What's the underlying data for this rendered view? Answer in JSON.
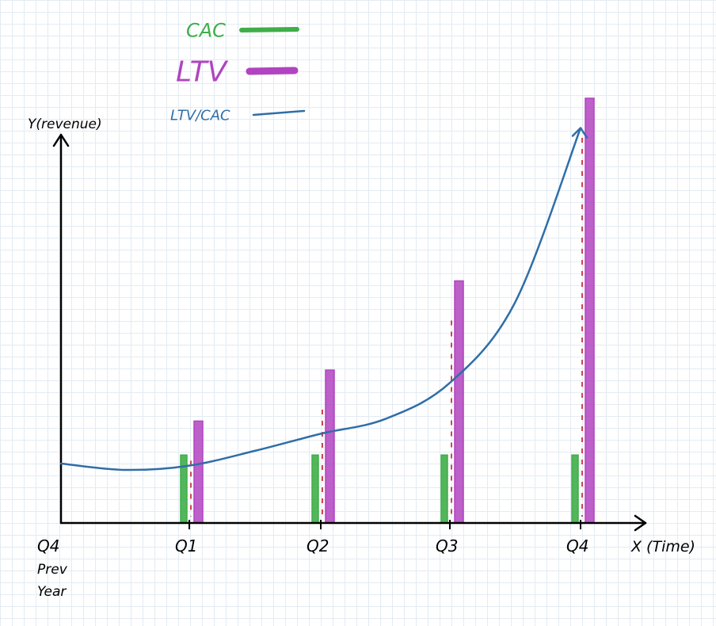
{
  "chart_data": {
    "type": "bar",
    "categories": [
      "Q4 Prev Year",
      "Q1",
      "Q2",
      "Q3",
      "Q4"
    ],
    "x_tick_labels": [
      {
        "lines": [
          "Q4",
          "Prev",
          "Year"
        ]
      },
      {
        "lines": [
          "Q1"
        ]
      },
      {
        "lines": [
          "Q2"
        ]
      },
      {
        "lines": [
          "Q3"
        ]
      },
      {
        "lines": [
          "Q4"
        ]
      }
    ],
    "xlabel": "X (Time)",
    "ylabel": "Y(revenue)",
    "ylim": [
      0,
      100
    ],
    "grid": true,
    "legend_position": "top-center",
    "series": [
      {
        "name": "CAC",
        "kind": "bar",
        "color": "#3fae49",
        "values": [
          null,
          16,
          16,
          16,
          16
        ]
      },
      {
        "name": "LTV",
        "kind": "bar",
        "color": "#b144c0",
        "values": [
          null,
          24,
          36,
          57,
          100
        ]
      },
      {
        "name": "LTV/CAC",
        "kind": "line",
        "color": "#2f6ea8",
        "points": [
          [
            0,
            14
          ],
          [
            0.5,
            12.5
          ],
          [
            1,
            13.5
          ],
          [
            1.5,
            17
          ],
          [
            2,
            21
          ],
          [
            2.5,
            24.5
          ],
          [
            3,
            33
          ],
          [
            3.5,
            52
          ],
          [
            4,
            93
          ]
        ]
      }
    ]
  }
}
